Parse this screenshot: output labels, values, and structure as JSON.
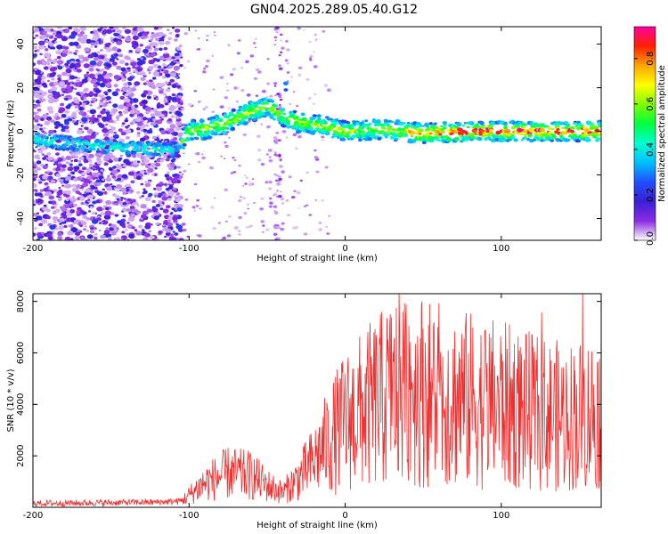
{
  "title": "GN04.2025.289.05.40.G12",
  "chart_data": [
    {
      "type": "heatmap",
      "xlabel": "Height of straight line (km)",
      "ylabel": "Frequency (Hz)",
      "xlim": [
        -200,
        164
      ],
      "ylim": [
        -50,
        48
      ],
      "xticks": [
        -200,
        -100,
        0,
        100
      ],
      "yticks": [
        -40,
        -20,
        0,
        20,
        40
      ],
      "colorbar": {
        "label": "Normalized spectral amplitude",
        "range": [
          0.0,
          0.94
        ],
        "ticks": [
          0.0,
          0.2,
          0.4,
          0.6,
          0.8
        ],
        "tick_labels": [
          "0.0",
          "0.2",
          "0.4",
          "0.6",
          "0.8"
        ],
        "colors": [
          "#ffffff",
          "#8a2be2",
          "#3a1fd6",
          "#1f4fff",
          "#00bfff",
          "#00ffd0",
          "#00ff40",
          "#7fff00",
          "#ffff00",
          "#ffa500",
          "#ff2000",
          "#ff00a0"
        ]
      },
      "features": {
        "noise_region_x": [
          -200,
          -105
        ],
        "ridge_track": [
          [
            -200,
            -4
          ],
          [
            -150,
            -7
          ],
          [
            -125,
            -8
          ],
          [
            -110,
            -9
          ],
          [
            -100,
            0
          ],
          [
            -90,
            1
          ],
          [
            -75,
            4
          ],
          [
            -60,
            9
          ],
          [
            -50,
            12
          ],
          [
            -40,
            7
          ],
          [
            -30,
            4
          ],
          [
            -20,
            3
          ],
          [
            -10,
            2
          ],
          [
            0,
            0
          ],
          [
            20,
            1
          ],
          [
            50,
            -1
          ],
          [
            80,
            0
          ],
          [
            100,
            0
          ],
          [
            130,
            0
          ],
          [
            164,
            0
          ]
        ],
        "spike": {
          "x": -38,
          "y": 22
        }
      }
    },
    {
      "type": "line",
      "xlabel": "Height of straight line (km)",
      "ylabel": "SNR (10 * v/v)",
      "xlim": [
        -200,
        164
      ],
      "ylim": [
        0,
        8300
      ],
      "xticks": [
        -200,
        -100,
        0,
        100
      ],
      "yticks": [
        2000,
        4000,
        6000,
        8000
      ],
      "color": "#ee3030",
      "envelope": [
        [
          -200,
          150
        ],
        [
          -120,
          200
        ],
        [
          -105,
          250
        ],
        [
          -90,
          1000
        ],
        [
          -75,
          1400
        ],
        [
          -60,
          1300
        ],
        [
          -50,
          900
        ],
        [
          -40,
          600
        ],
        [
          -30,
          1200
        ],
        [
          -20,
          1900
        ],
        [
          -10,
          2800
        ],
        [
          0,
          3600
        ],
        [
          20,
          4400
        ],
        [
          40,
          5200
        ],
        [
          60,
          4600
        ],
        [
          80,
          4500
        ],
        [
          100,
          4300
        ],
        [
          120,
          4000
        ],
        [
          140,
          3800
        ],
        [
          164,
          4000
        ]
      ]
    }
  ]
}
